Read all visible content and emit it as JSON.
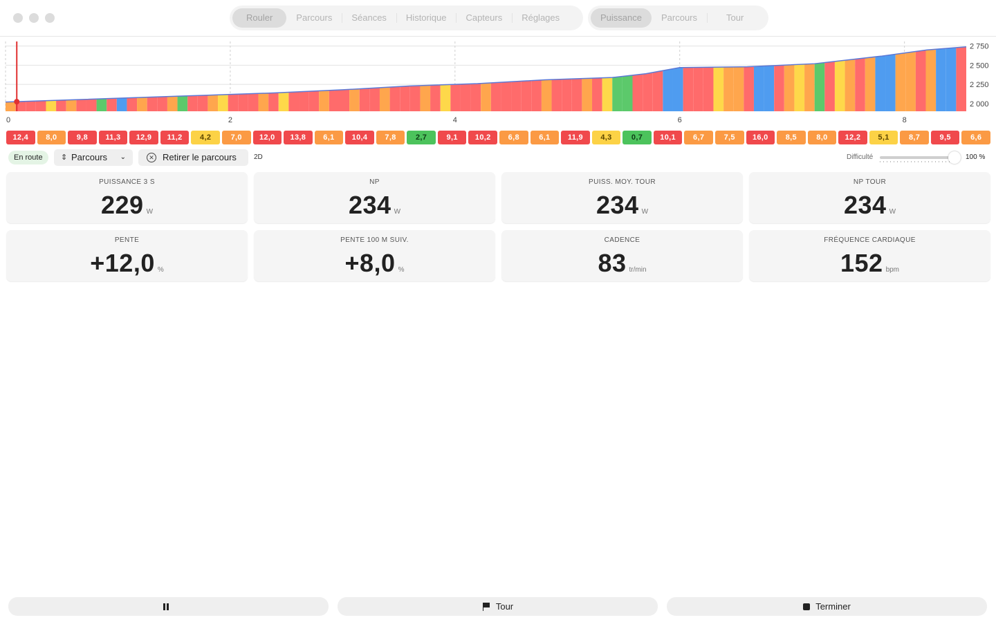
{
  "window": {
    "controls": [
      "close",
      "minimize",
      "zoom"
    ]
  },
  "nav": {
    "tabs": [
      {
        "label": "Rouler",
        "active": true
      },
      {
        "label": "Parcours",
        "active": false
      },
      {
        "label": "Séances",
        "active": false
      },
      {
        "label": "Historique",
        "active": false
      },
      {
        "label": "Capteurs",
        "active": false
      },
      {
        "label": "Réglages",
        "active": false
      }
    ],
    "view_tabs": [
      {
        "label": "Puissance",
        "active": true
      },
      {
        "label": "Parcours",
        "active": false
      },
      {
        "label": "Tour",
        "active": false
      }
    ]
  },
  "chart_data": {
    "type": "area",
    "x_ticks": [
      "0",
      "2",
      "4",
      "6",
      "8"
    ],
    "y_ticks": [
      "2 750",
      "2 500",
      "2 250",
      "2 000"
    ],
    "xlim": [
      0,
      8.55
    ],
    "ylim": [
      1900,
      2810
    ],
    "current_position_km": 0.1,
    "profile": [
      [
        0,
        2020
      ],
      [
        0.6,
        2050
      ],
      [
        1.2,
        2080
      ],
      [
        1.8,
        2110
      ],
      [
        2.4,
        2140
      ],
      [
        3.0,
        2180
      ],
      [
        3.6,
        2230
      ],
      [
        4.2,
        2260
      ],
      [
        4.8,
        2310
      ],
      [
        5.4,
        2340
      ],
      [
        5.7,
        2390
      ],
      [
        6.0,
        2470
      ],
      [
        6.6,
        2480
      ],
      [
        7.2,
        2520
      ],
      [
        7.8,
        2620
      ],
      [
        8.2,
        2700
      ],
      [
        8.55,
        2740
      ]
    ],
    "colors": {
      "red": "#ff6b6b",
      "orange": "#ffa64d",
      "yellow": "#fed84a",
      "green": "#5cc96b",
      "blue": "#4f9cf0",
      "line": "#5b78d6",
      "marker": "#e03030"
    },
    "segment_colors": [
      "orange",
      "red",
      "red",
      "red",
      "yellow",
      "red",
      "orange",
      "red",
      "red",
      "green",
      "red",
      "blue",
      "red",
      "orange",
      "red",
      "red",
      "orange",
      "green",
      "red",
      "red",
      "orange",
      "yellow",
      "red",
      "red",
      "red",
      "orange",
      "red",
      "yellow",
      "red",
      "red",
      "red",
      "orange",
      "red",
      "red",
      "orange",
      "red",
      "red",
      "orange",
      "red",
      "red",
      "red",
      "orange",
      "red",
      "yellow",
      "red",
      "red",
      "red",
      "orange",
      "red",
      "red",
      "red",
      "red",
      "red",
      "orange",
      "red",
      "red",
      "red",
      "orange",
      "red",
      "yellow",
      "green",
      "green",
      "red",
      "red",
      "red",
      "blue",
      "blue",
      "red",
      "red",
      "red",
      "yellow",
      "orange",
      "orange",
      "red",
      "blue",
      "blue",
      "red",
      "orange",
      "yellow",
      "orange",
      "green",
      "red",
      "yellow",
      "orange",
      "red",
      "orange",
      "blue",
      "blue",
      "orange",
      "orange",
      "red",
      "orange",
      "blue",
      "blue",
      "red"
    ]
  },
  "gradients": [
    {
      "value": "12,4",
      "color": "red"
    },
    {
      "value": "8,0",
      "color": "orange"
    },
    {
      "value": "9,8",
      "color": "red"
    },
    {
      "value": "11,3",
      "color": "red"
    },
    {
      "value": "12,9",
      "color": "red"
    },
    {
      "value": "11,2",
      "color": "red"
    },
    {
      "value": "4,2",
      "color": "yellow"
    },
    {
      "value": "7,0",
      "color": "orange"
    },
    {
      "value": "12,0",
      "color": "red"
    },
    {
      "value": "13,8",
      "color": "red"
    },
    {
      "value": "6,1",
      "color": "orange"
    },
    {
      "value": "10,4",
      "color": "red"
    },
    {
      "value": "7,8",
      "color": "orange"
    },
    {
      "value": "2,7",
      "color": "green"
    },
    {
      "value": "9,1",
      "color": "red"
    },
    {
      "value": "10,2",
      "color": "red"
    },
    {
      "value": "6,8",
      "color": "orange"
    },
    {
      "value": "6,1",
      "color": "orange"
    },
    {
      "value": "11,9",
      "color": "red"
    },
    {
      "value": "4,3",
      "color": "yellow"
    },
    {
      "value": "0,7",
      "color": "green"
    },
    {
      "value": "10,1",
      "color": "red"
    },
    {
      "value": "6,7",
      "color": "orange"
    },
    {
      "value": "7,5",
      "color": "orange"
    },
    {
      "value": "16,0",
      "color": "red"
    },
    {
      "value": "8,5",
      "color": "orange"
    },
    {
      "value": "8,0",
      "color": "orange"
    },
    {
      "value": "12,2",
      "color": "red"
    },
    {
      "value": "5,1",
      "color": "yellow"
    },
    {
      "value": "8,7",
      "color": "orange"
    },
    {
      "value": "9,5",
      "color": "red"
    },
    {
      "value": "6,6",
      "color": "orange"
    }
  ],
  "badge_colors": {
    "red": "#f0494c",
    "orange": "#fb9a44",
    "yellow": "#fcd246",
    "green": "#4cc35c"
  },
  "controls": {
    "status": "En route",
    "parcours_select": "Parcours",
    "remove_route": "Retirer le parcours",
    "view_mode": "2D",
    "difficulty_label": "Difficulté",
    "difficulty_value": "100 %",
    "difficulty_level": 1.0
  },
  "metrics": [
    {
      "title": "PUISSANCE 3 S",
      "value": "229",
      "unit": "W"
    },
    {
      "title": "NP",
      "value": "234",
      "unit": "W"
    },
    {
      "title": "PUISS. MOY. TOUR",
      "value": "234",
      "unit": "W"
    },
    {
      "title": "NP TOUR",
      "value": "234",
      "unit": "W"
    },
    {
      "title": "PENTE",
      "value": "+12,0",
      "unit": "%"
    },
    {
      "title": "PENTE 100 M SUIV.",
      "value": "+8,0",
      "unit": "%"
    },
    {
      "title": "CADENCE",
      "value": "83",
      "unit": "tr/min"
    },
    {
      "title": "FRÉQUENCE CARDIAQUE",
      "value": "152",
      "unit": "bpm"
    }
  ],
  "bottom": {
    "pause": {
      "icon": "pause-icon"
    },
    "lap": {
      "label": "Tour",
      "icon": "flag-icon"
    },
    "finish": {
      "label": "Terminer",
      "icon": "stop-icon"
    }
  }
}
